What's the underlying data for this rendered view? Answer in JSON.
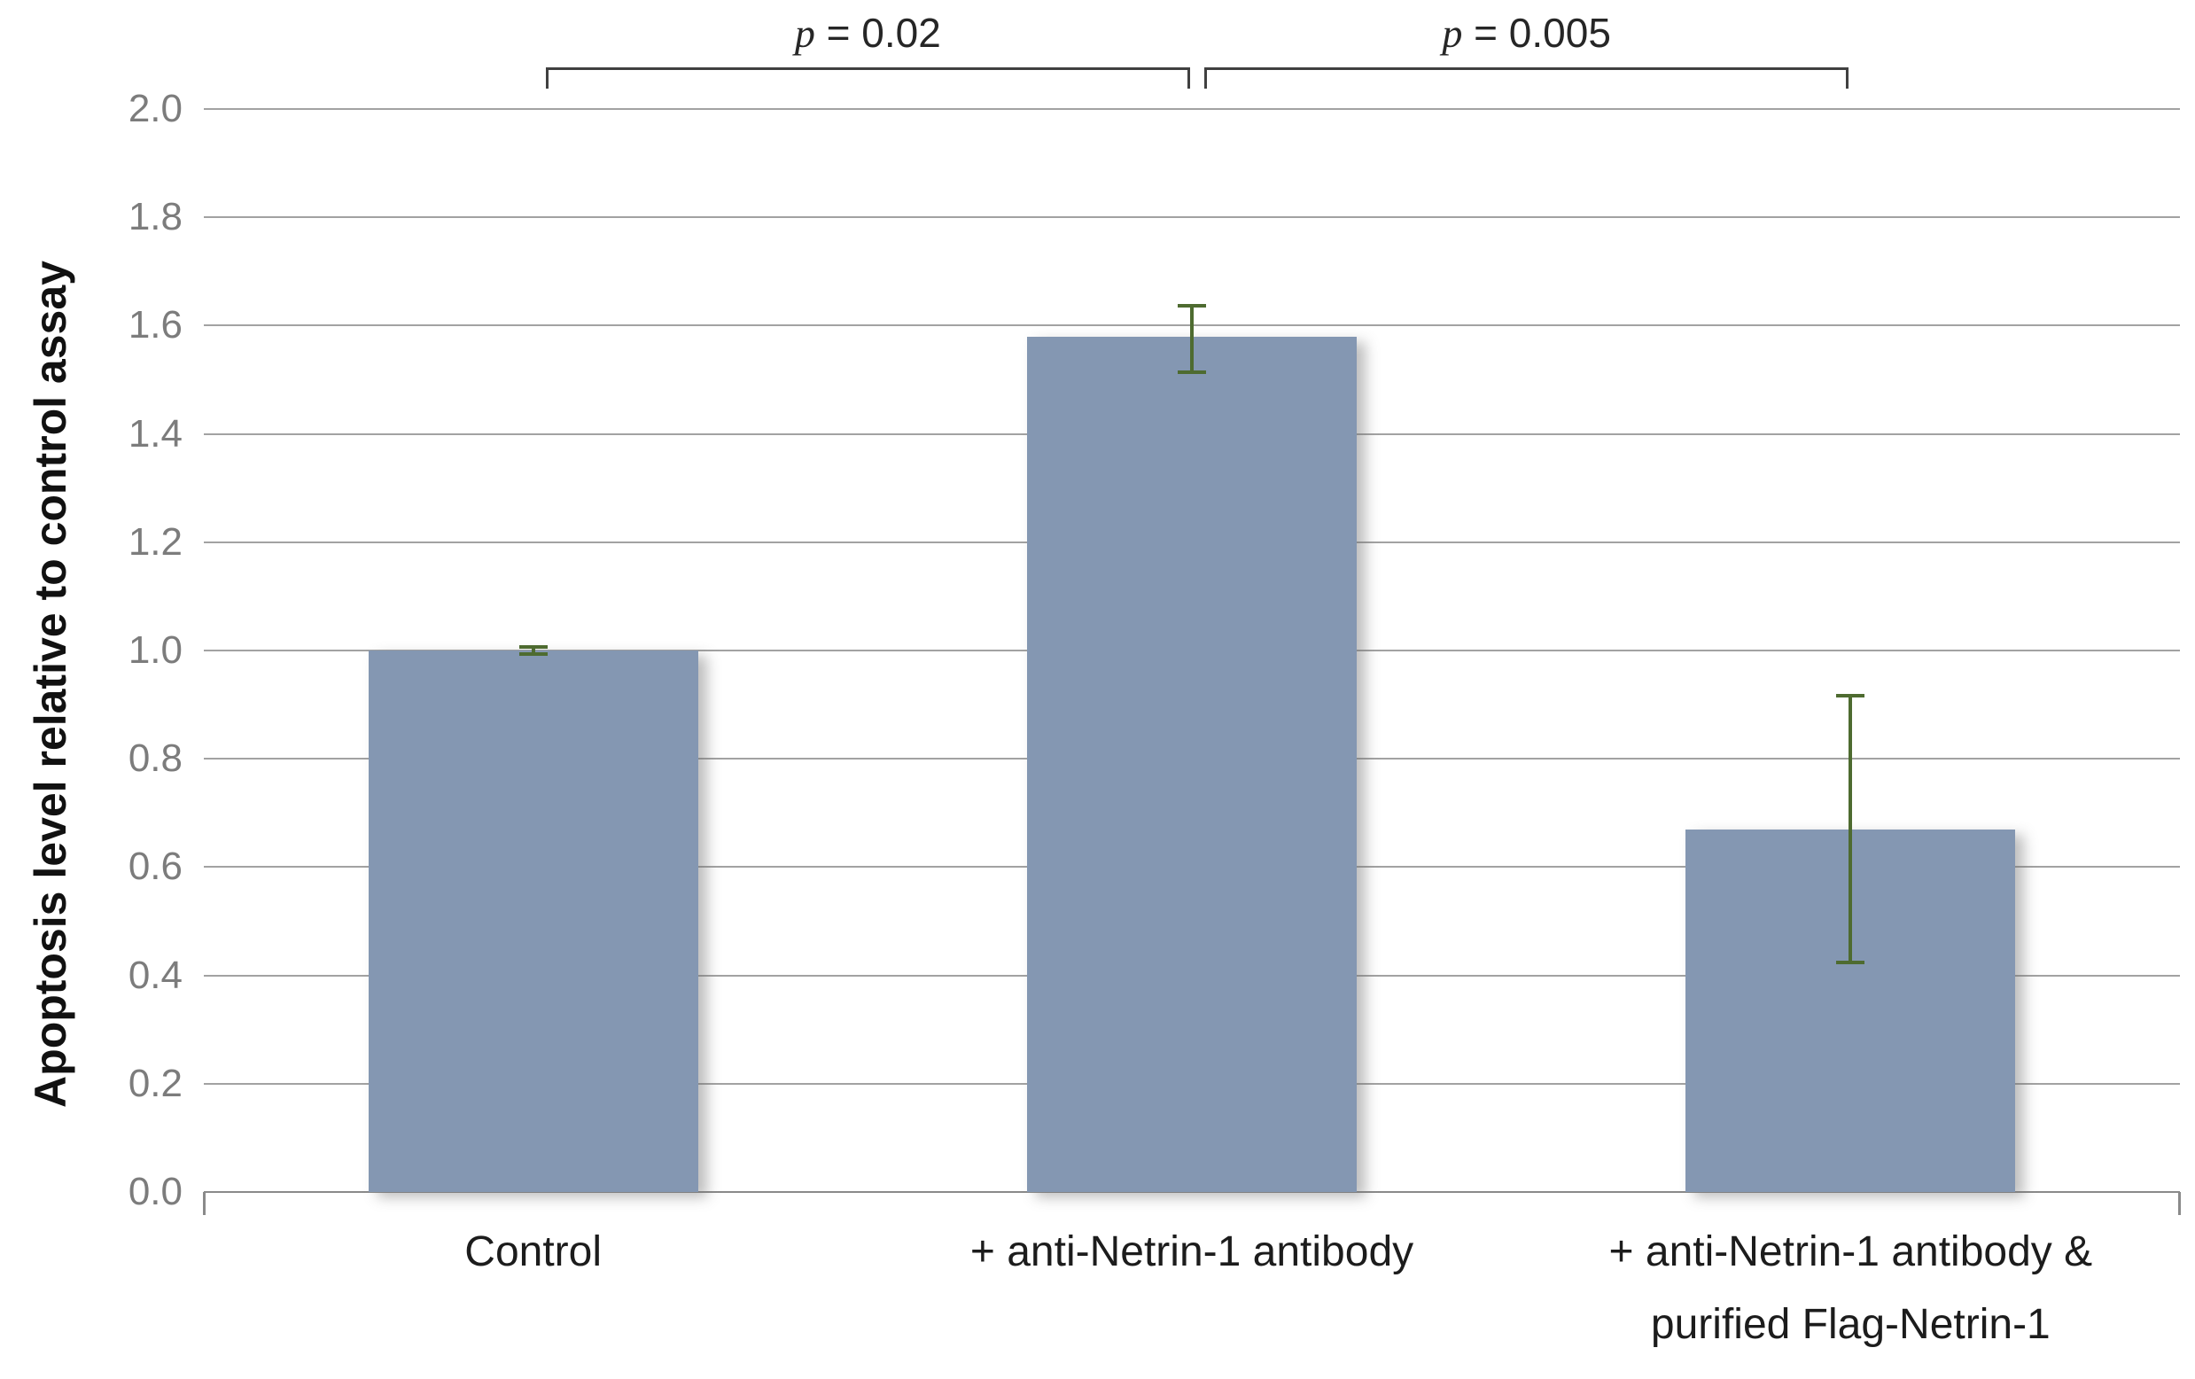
{
  "chart_data": {
    "type": "bar",
    "title": "",
    "xlabel": "",
    "ylabel": "Apoptosis level relative to control assay",
    "ylim": [
      0.0,
      2.0
    ],
    "ytick_step": 0.2,
    "yticks": [
      "0.0",
      "0.2",
      "0.4",
      "0.6",
      "0.8",
      "1.0",
      "1.2",
      "1.4",
      "1.6",
      "1.8",
      "2.0"
    ],
    "grid": "horizontal",
    "legend": "none",
    "categories": [
      [
        "Control"
      ],
      [
        "+ anti-Netrin-1 antibody"
      ],
      [
        "+ anti-Netrin-1 antibody &",
        "purified Flag-Netrin-1"
      ]
    ],
    "values": [
      1.0,
      1.58,
      0.67
    ],
    "error_bars": [
      {
        "low": 0.99,
        "high": 1.01
      },
      {
        "low": 1.51,
        "high": 1.64
      },
      {
        "low": 0.42,
        "high": 0.92
      }
    ],
    "annotations": [
      {
        "var": "p",
        "text": " = 0.02",
        "from": 0,
        "to": 1
      },
      {
        "var": "p",
        "text": " = 0.005",
        "from": 1,
        "to": 2
      }
    ],
    "colors": {
      "bar": "#8497b2",
      "error_bar": "#4e6b30",
      "gridline": "#a2a2a2",
      "tick_label": "#7c7c7c",
      "text": "#1c1c1c",
      "bracket": "#404040"
    }
  }
}
